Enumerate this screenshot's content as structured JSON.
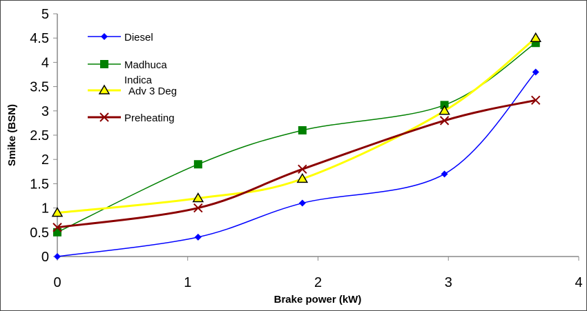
{
  "chart_data": {
    "type": "line",
    "title": "",
    "xlabel": "Brake power (kW)",
    "ylabel": "Smike (BSN)",
    "xlim": [
      0,
      4
    ],
    "ylim": [
      0,
      5
    ],
    "xticks": [
      "0",
      "1",
      "2",
      "3",
      "4"
    ],
    "yticks": [
      "0",
      "0.5",
      "1",
      "1.5",
      "2",
      "2.5",
      "3",
      "3.5",
      "4",
      "4.5",
      "5"
    ],
    "grid": false,
    "legend_position": "top-left",
    "smoothed": true,
    "series": [
      {
        "name": "Diesel",
        "color": "#0000ff",
        "marker": "diamond",
        "x": [
          0,
          1.08,
          1.88,
          2.97,
          3.67
        ],
        "y": [
          0,
          0.4,
          1.1,
          1.7,
          3.8
        ]
      },
      {
        "name": "Madhuca Indica",
        "color": "#008000",
        "marker": "square",
        "x": [
          0,
          1.08,
          1.88,
          2.97,
          3.67
        ],
        "y": [
          0.5,
          1.9,
          2.6,
          3.12,
          4.4
        ]
      },
      {
        "name": "Adv 3 Deg",
        "color": "#ffff00",
        "marker": "triangle",
        "x": [
          0,
          1.08,
          1.88,
          2.97,
          3.67
        ],
        "y": [
          0.9,
          1.2,
          1.6,
          3.0,
          4.5
        ]
      },
      {
        "name": "Preheating",
        "color": "#8b0000",
        "marker": "x",
        "x": [
          0,
          1.08,
          1.88,
          2.97,
          3.67
        ],
        "y": [
          0.6,
          1.0,
          1.8,
          2.8,
          3.22
        ]
      }
    ]
  }
}
